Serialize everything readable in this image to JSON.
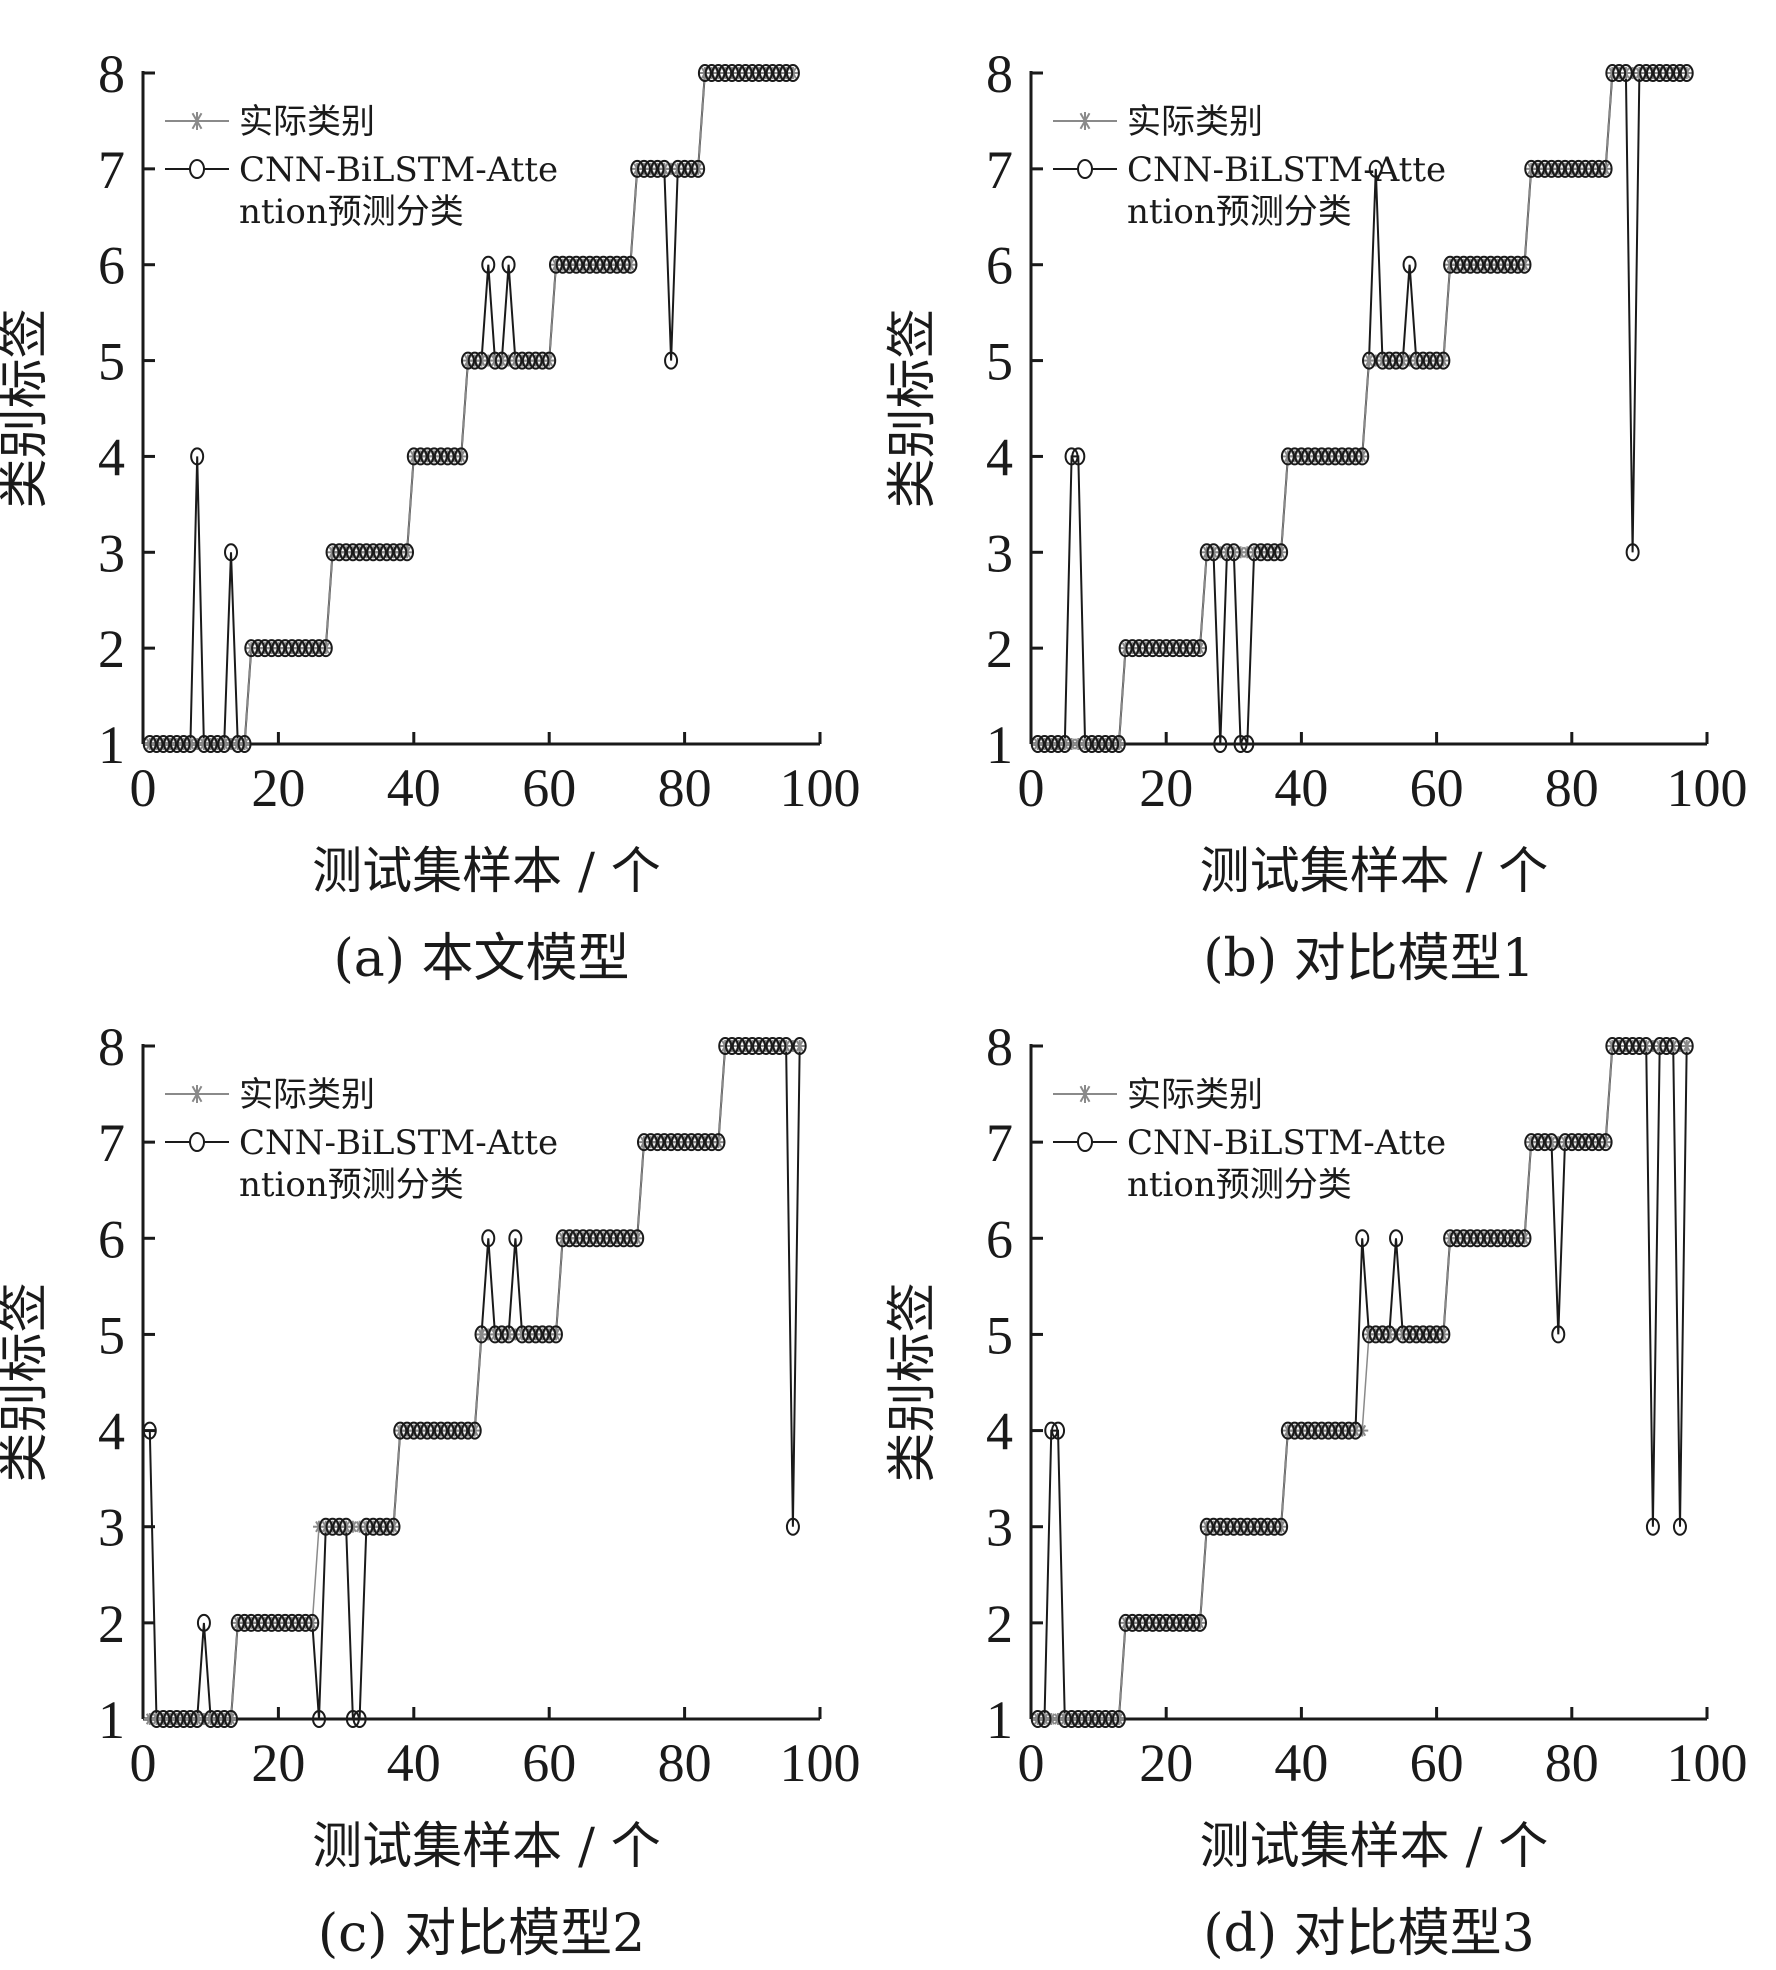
{
  "chart_data": [
    {
      "type": "line",
      "caption": "(a)  本文模型",
      "xlabel": "测试集样本 / 个",
      "ylabel": "类别标签",
      "xlim": [
        0,
        100
      ],
      "ylim": [
        1,
        8
      ],
      "xticks": [
        0,
        20,
        40,
        60,
        80,
        100
      ],
      "yticks": [
        1,
        2,
        3,
        4,
        5,
        6,
        7,
        8
      ],
      "legend_position": "top-left",
      "grid": false,
      "group_sizes": [
        15,
        12,
        12,
        8,
        13,
        12,
        10,
        14
      ],
      "series": [
        {
          "name": "实际类别",
          "marker": "asterisk",
          "color": "#8a8a8a"
        },
        {
          "name": "CNN-BiLSTM-Attention预测分类",
          "marker": "circle",
          "color": "#1a1a1a",
          "errors": [
            {
              "index": 8,
              "value": 4
            },
            {
              "index": 13,
              "value": 3
            },
            {
              "index": 51,
              "value": 6
            },
            {
              "index": 54,
              "value": 6
            },
            {
              "index": 78,
              "value": 5
            }
          ]
        }
      ]
    },
    {
      "type": "line",
      "caption": "(b)  对比模型1",
      "xlabel": "测试集样本 / 个",
      "ylabel": "类别标签",
      "xlim": [
        0,
        100
      ],
      "ylim": [
        1,
        8
      ],
      "xticks": [
        0,
        20,
        40,
        60,
        80,
        100
      ],
      "yticks": [
        1,
        2,
        3,
        4,
        5,
        6,
        7,
        8
      ],
      "legend_position": "top-left",
      "grid": false,
      "group_sizes": [
        13,
        12,
        12,
        12,
        12,
        12,
        12,
        12
      ],
      "series": [
        {
          "name": "实际类别",
          "marker": "asterisk",
          "color": "#8a8a8a"
        },
        {
          "name": "CNN-BiLSTM-Attention预测分类",
          "marker": "circle",
          "color": "#1a1a1a",
          "errors": [
            {
              "index": 6,
              "value": 4
            },
            {
              "index": 7,
              "value": 4
            },
            {
              "index": 28,
              "value": 1
            },
            {
              "index": 31,
              "value": 1
            },
            {
              "index": 32,
              "value": 1
            },
            {
              "index": 51,
              "value": 7
            },
            {
              "index": 56,
              "value": 6
            },
            {
              "index": 89,
              "value": 3
            }
          ]
        }
      ]
    },
    {
      "type": "line",
      "caption": "(c)  对比模型2",
      "xlabel": "测试集样本 / 个",
      "ylabel": "类别标签",
      "xlim": [
        0,
        100
      ],
      "ylim": [
        1,
        8
      ],
      "xticks": [
        0,
        20,
        40,
        60,
        80,
        100
      ],
      "yticks": [
        1,
        2,
        3,
        4,
        5,
        6,
        7,
        8
      ],
      "legend_position": "top-left",
      "grid": false,
      "group_sizes": [
        13,
        12,
        12,
        12,
        12,
        12,
        12,
        12
      ],
      "series": [
        {
          "name": "实际类别",
          "marker": "asterisk",
          "color": "#8a8a8a"
        },
        {
          "name": "CNN-BiLSTM-Attention预测分类",
          "marker": "circle",
          "color": "#1a1a1a",
          "errors": [
            {
              "index": 1,
              "value": 4
            },
            {
              "index": 9,
              "value": 2
            },
            {
              "index": 26,
              "value": 1
            },
            {
              "index": 31,
              "value": 1
            },
            {
              "index": 32,
              "value": 1
            },
            {
              "index": 51,
              "value": 6
            },
            {
              "index": 55,
              "value": 6
            },
            {
              "index": 96,
              "value": 3
            }
          ]
        }
      ]
    },
    {
      "type": "line",
      "caption": "(d)  对比模型3",
      "xlabel": "测试集样本 / 个",
      "ylabel": "类别标签",
      "xlim": [
        0,
        100
      ],
      "ylim": [
        1,
        8
      ],
      "xticks": [
        0,
        20,
        40,
        60,
        80,
        100
      ],
      "yticks": [
        1,
        2,
        3,
        4,
        5,
        6,
        7,
        8
      ],
      "legend_position": "top-left",
      "grid": false,
      "group_sizes": [
        13,
        12,
        12,
        12,
        12,
        12,
        12,
        12
      ],
      "series": [
        {
          "name": "实际类别",
          "marker": "asterisk",
          "color": "#8a8a8a"
        },
        {
          "name": "CNN-BiLSTM-Attention预测分类",
          "marker": "circle",
          "color": "#1a1a1a",
          "errors": [
            {
              "index": 3,
              "value": 4
            },
            {
              "index": 4,
              "value": 4
            },
            {
              "index": 49,
              "value": 6
            },
            {
              "index": 54,
              "value": 6
            },
            {
              "index": 78,
              "value": 5
            },
            {
              "index": 92,
              "value": 3
            },
            {
              "index": 96,
              "value": 3
            }
          ]
        }
      ]
    }
  ]
}
